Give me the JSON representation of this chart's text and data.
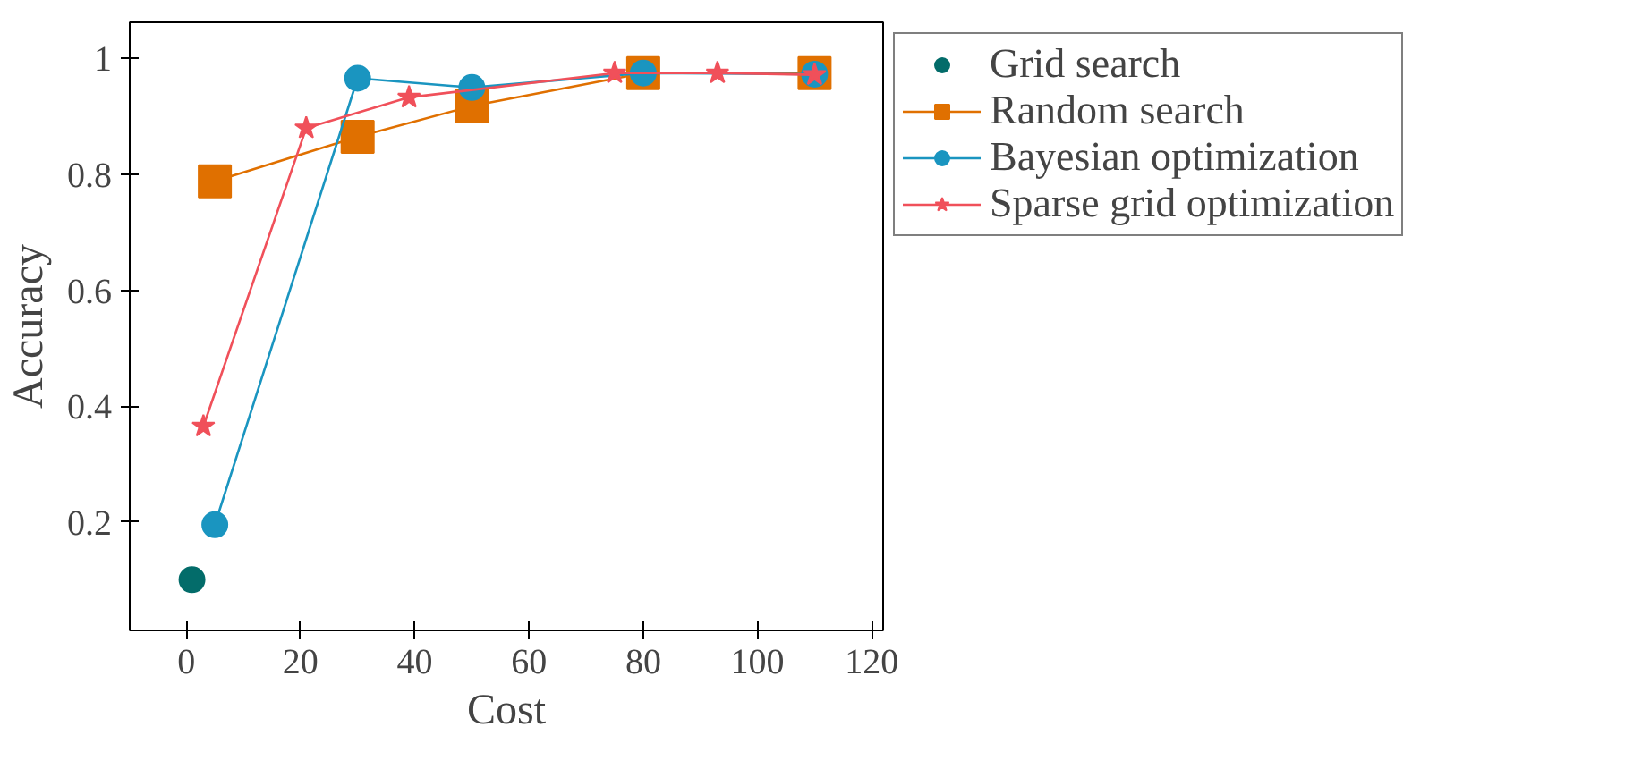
{
  "chart_data": {
    "type": "line",
    "xlabel": "Cost",
    "ylabel": "Accuracy",
    "xlim": [
      -9.9,
      122
    ],
    "ylim": [
      0.0125,
      1.0625
    ],
    "xticks": [
      0,
      20,
      40,
      60,
      80,
      100,
      120
    ],
    "yticks": [
      0.2,
      0.4,
      0.6,
      0.8,
      1
    ],
    "grid": false,
    "legend": "right",
    "series": [
      {
        "name": "Grid search",
        "color": "#036c6a",
        "marker": "circle",
        "x": [
          1
        ],
        "values": [
          0.1
        ]
      },
      {
        "name": "Random search",
        "color": "#e07000",
        "marker": "square",
        "x": [
          5,
          30,
          50,
          80,
          110
        ],
        "values": [
          0.788,
          0.865,
          0.918,
          0.975,
          0.975
        ]
      },
      {
        "name": "Bayesian optimization",
        "color": "#1a95c0",
        "marker": "circle",
        "x": [
          5,
          30,
          50,
          80,
          110
        ],
        "values": [
          0.195,
          0.966,
          0.95,
          0.975,
          0.973
        ]
      },
      {
        "name": "Sparse grid optimization",
        "color": "#f0505a",
        "marker": "star",
        "x": [
          3,
          21,
          39,
          75,
          93,
          110
        ],
        "values": [
          0.365,
          0.88,
          0.933,
          0.975,
          0.975,
          0.972
        ]
      }
    ]
  }
}
